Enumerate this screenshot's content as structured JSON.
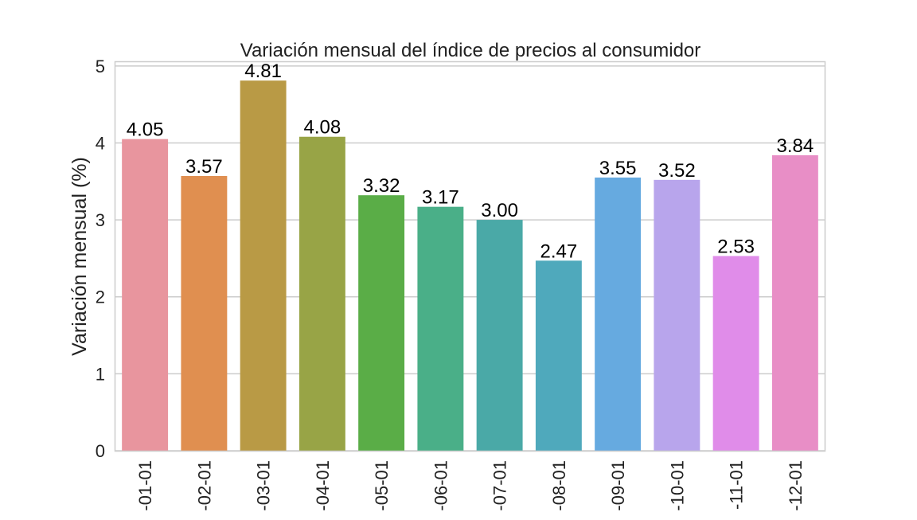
{
  "chart_data": {
    "type": "bar",
    "title": "Variación mensual del índice de precios al consumidor",
    "xlabel": "",
    "ylabel": "Variación mensual (%)",
    "ylim": [
      0,
      5.05
    ],
    "yticks": [
      0,
      1,
      2,
      3,
      4,
      5
    ],
    "grid": true,
    "categories": [
      "-01-01",
      "-02-01",
      "-03-01",
      "-04-01",
      "-05-01",
      "-06-01",
      "-07-01",
      "-08-01",
      "-09-01",
      "-10-01",
      "-11-01",
      "-12-01"
    ],
    "values": [
      4.05,
      3.57,
      4.81,
      4.08,
      3.32,
      3.17,
      3.0,
      2.47,
      3.55,
      3.52,
      2.53,
      3.84
    ],
    "data_labels": [
      "4.05",
      "3.57",
      "4.81",
      "4.08",
      "3.32",
      "3.17",
      "3.00",
      "2.47",
      "3.55",
      "3.52",
      "2.53",
      "3.84"
    ],
    "colors": [
      "#e8959e",
      "#e08f50",
      "#b99a45",
      "#98a446",
      "#5aad47",
      "#4aaf88",
      "#4aa9a7",
      "#4fa9bc",
      "#66aae0",
      "#b8a5ec",
      "#e08ce9",
      "#e88ec6"
    ],
    "grid_color": "#cccccc",
    "frame_color": "#cccccc",
    "text_color": "#222222",
    "label_color": "#000000"
  }
}
